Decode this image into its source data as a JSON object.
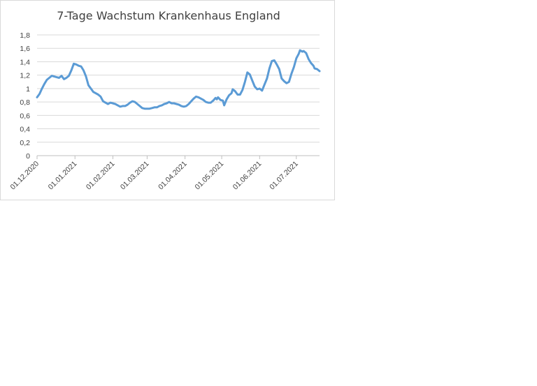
{
  "chart_data": {
    "type": "line",
    "title": "7-Tage Wachstum Krankenhaus England",
    "xlabel": "",
    "ylabel": "",
    "ylim": [
      0,
      1.8
    ],
    "y_ticks": [
      "0",
      "0,2",
      "0,4",
      "0,6",
      "0,8",
      "1",
      "1,2",
      "1,4",
      "1,6",
      "1,8"
    ],
    "x_range": [
      "2020-12-01",
      "2021-07-20"
    ],
    "x_ticks": [
      {
        "date": "2020-12-01",
        "label": "01.12.2020"
      },
      {
        "date": "2021-01-01",
        "label": "01.01.2021"
      },
      {
        "date": "2021-02-01",
        "label": "01.02.2021"
      },
      {
        "date": "2021-03-01",
        "label": "01.03.2021"
      },
      {
        "date": "2021-04-01",
        "label": "01.04.2021"
      },
      {
        "date": "2021-05-01",
        "label": "01.05.2021"
      },
      {
        "date": "2021-06-01",
        "label": "01.06.2021"
      },
      {
        "date": "2021-07-01",
        "label": "01.07.2021"
      }
    ],
    "grid": true,
    "legend": "none",
    "series": [
      {
        "color": "#5b9bd5",
        "points": [
          [
            "2020-12-01",
            0.87
          ],
          [
            "2020-12-03",
            0.92
          ],
          [
            "2020-12-05",
            1.0
          ],
          [
            "2020-12-07",
            1.07
          ],
          [
            "2020-12-09",
            1.13
          ],
          [
            "2020-12-11",
            1.16
          ],
          [
            "2020-12-13",
            1.19
          ],
          [
            "2020-12-15",
            1.18
          ],
          [
            "2020-12-17",
            1.17
          ],
          [
            "2020-12-19",
            1.16
          ],
          [
            "2020-12-21",
            1.19
          ],
          [
            "2020-12-23",
            1.14
          ],
          [
            "2020-12-25",
            1.16
          ],
          [
            "2020-12-27",
            1.19
          ],
          [
            "2020-12-29",
            1.27
          ],
          [
            "2020-12-31",
            1.37
          ],
          [
            "2021-01-02",
            1.36
          ],
          [
            "2021-01-04",
            1.34
          ],
          [
            "2021-01-06",
            1.33
          ],
          [
            "2021-01-08",
            1.27
          ],
          [
            "2021-01-10",
            1.18
          ],
          [
            "2021-01-12",
            1.05
          ],
          [
            "2021-01-14",
            1.0
          ],
          [
            "2021-01-16",
            0.95
          ],
          [
            "2021-01-18",
            0.93
          ],
          [
            "2021-01-20",
            0.91
          ],
          [
            "2021-01-22",
            0.88
          ],
          [
            "2021-01-24",
            0.81
          ],
          [
            "2021-01-26",
            0.79
          ],
          [
            "2021-01-28",
            0.77
          ],
          [
            "2021-01-30",
            0.79
          ],
          [
            "2021-02-01",
            0.78
          ],
          [
            "2021-02-03",
            0.77
          ],
          [
            "2021-02-05",
            0.75
          ],
          [
            "2021-02-07",
            0.73
          ],
          [
            "2021-02-09",
            0.74
          ],
          [
            "2021-02-11",
            0.74
          ],
          [
            "2021-02-13",
            0.76
          ],
          [
            "2021-02-15",
            0.79
          ],
          [
            "2021-02-17",
            0.81
          ],
          [
            "2021-02-19",
            0.8
          ],
          [
            "2021-02-21",
            0.77
          ],
          [
            "2021-02-23",
            0.74
          ],
          [
            "2021-02-25",
            0.71
          ],
          [
            "2021-02-27",
            0.7
          ],
          [
            "2021-03-01",
            0.7
          ],
          [
            "2021-03-03",
            0.7
          ],
          [
            "2021-03-05",
            0.71
          ],
          [
            "2021-03-07",
            0.72
          ],
          [
            "2021-03-09",
            0.72
          ],
          [
            "2021-03-11",
            0.74
          ],
          [
            "2021-03-13",
            0.75
          ],
          [
            "2021-03-15",
            0.77
          ],
          [
            "2021-03-17",
            0.78
          ],
          [
            "2021-03-19",
            0.8
          ],
          [
            "2021-03-21",
            0.78
          ],
          [
            "2021-03-23",
            0.78
          ],
          [
            "2021-03-25",
            0.77
          ],
          [
            "2021-03-27",
            0.76
          ],
          [
            "2021-03-29",
            0.74
          ],
          [
            "2021-03-31",
            0.73
          ],
          [
            "2021-04-02",
            0.74
          ],
          [
            "2021-04-04",
            0.77
          ],
          [
            "2021-04-06",
            0.81
          ],
          [
            "2021-04-08",
            0.85
          ],
          [
            "2021-04-10",
            0.88
          ],
          [
            "2021-04-12",
            0.87
          ],
          [
            "2021-04-14",
            0.85
          ],
          [
            "2021-04-16",
            0.83
          ],
          [
            "2021-04-18",
            0.8
          ],
          [
            "2021-04-20",
            0.79
          ],
          [
            "2021-04-22",
            0.79
          ],
          [
            "2021-04-24",
            0.82
          ],
          [
            "2021-04-26",
            0.86
          ],
          [
            "2021-04-27",
            0.84
          ],
          [
            "2021-04-28",
            0.87
          ],
          [
            "2021-04-30",
            0.83
          ],
          [
            "2021-05-02",
            0.82
          ],
          [
            "2021-05-03",
            0.75
          ],
          [
            "2021-05-05",
            0.84
          ],
          [
            "2021-05-07",
            0.9
          ],
          [
            "2021-05-09",
            0.93
          ],
          [
            "2021-05-10",
            0.99
          ],
          [
            "2021-05-12",
            0.96
          ],
          [
            "2021-05-14",
            0.91
          ],
          [
            "2021-05-16",
            0.91
          ],
          [
            "2021-05-18",
            0.98
          ],
          [
            "2021-05-20",
            1.1
          ],
          [
            "2021-05-22",
            1.24
          ],
          [
            "2021-05-24",
            1.21
          ],
          [
            "2021-05-26",
            1.12
          ],
          [
            "2021-05-28",
            1.03
          ],
          [
            "2021-05-30",
            0.99
          ],
          [
            "2021-06-01",
            1.0
          ],
          [
            "2021-06-03",
            0.97
          ],
          [
            "2021-06-05",
            1.06
          ],
          [
            "2021-06-07",
            1.15
          ],
          [
            "2021-06-09",
            1.3
          ],
          [
            "2021-06-11",
            1.41
          ],
          [
            "2021-06-13",
            1.42
          ],
          [
            "2021-06-15",
            1.36
          ],
          [
            "2021-06-17",
            1.29
          ],
          [
            "2021-06-19",
            1.15
          ],
          [
            "2021-06-21",
            1.11
          ],
          [
            "2021-06-23",
            1.08
          ],
          [
            "2021-06-25",
            1.1
          ],
          [
            "2021-06-27",
            1.22
          ],
          [
            "2021-06-29",
            1.32
          ],
          [
            "2021-07-01",
            1.45
          ],
          [
            "2021-07-03",
            1.52
          ],
          [
            "2021-07-04",
            1.57
          ],
          [
            "2021-07-06",
            1.55
          ],
          [
            "2021-07-07",
            1.56
          ],
          [
            "2021-07-09",
            1.53
          ],
          [
            "2021-07-11",
            1.44
          ],
          [
            "2021-07-13",
            1.38
          ],
          [
            "2021-07-15",
            1.34
          ],
          [
            "2021-07-16",
            1.3
          ],
          [
            "2021-07-18",
            1.29
          ],
          [
            "2021-07-20",
            1.26
          ]
        ]
      }
    ]
  }
}
